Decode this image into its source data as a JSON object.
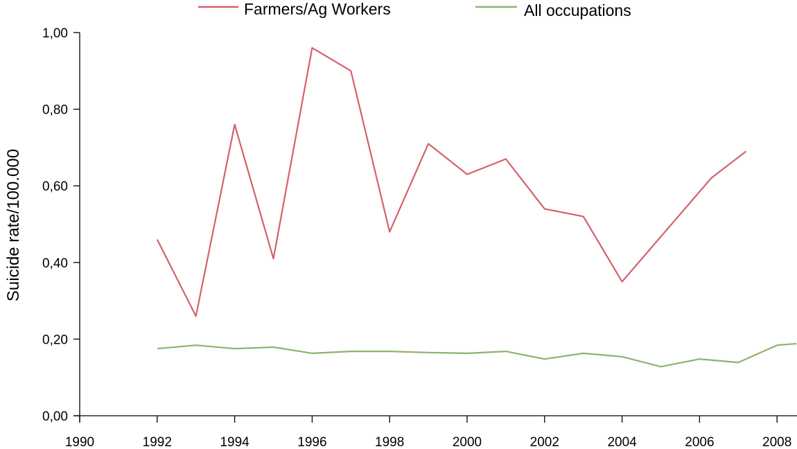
{
  "chart_data": {
    "type": "line",
    "title": "",
    "xlabel": "",
    "ylabel": "Suicide rate/100.000",
    "xlim": [
      1990,
      2008.5
    ],
    "ylim": [
      0,
      1.0
    ],
    "x_ticks": [
      "1990",
      "1992",
      "1994",
      "1996",
      "1998",
      "2000",
      "2002",
      "2004",
      "2006",
      "2008"
    ],
    "y_ticks": [
      "0,00",
      "0,20",
      "0,40",
      "0,60",
      "0,80",
      "1,00"
    ],
    "grid": false,
    "legend_position": "top",
    "series": [
      {
        "name": "Farmers/Ag Workers",
        "color": "#d4606a",
        "x": [
          1992,
          1993,
          1994,
          1995,
          1996,
          1997,
          1998,
          1999,
          2000,
          2001,
          2002,
          2003,
          2004,
          2006.3,
          2007.2
        ],
        "values": [
          0.46,
          0.26,
          0.76,
          0.41,
          0.96,
          0.9,
          0.48,
          0.71,
          0.63,
          0.67,
          0.54,
          0.52,
          0.35,
          0.62,
          0.69
        ]
      },
      {
        "name": "All occupations",
        "color": "#8db36a",
        "x": [
          1992,
          1993,
          1994,
          1995,
          1996,
          1997,
          1998,
          1999,
          2000,
          2001,
          2002,
          2003,
          2004,
          2005,
          2006,
          2007,
          2008,
          2008.5
        ],
        "values": [
          0.175,
          0.184,
          0.175,
          0.179,
          0.163,
          0.168,
          0.168,
          0.165,
          0.163,
          0.168,
          0.148,
          0.163,
          0.154,
          0.128,
          0.148,
          0.139,
          0.184,
          0.188
        ]
      }
    ]
  },
  "legend": {
    "items": [
      {
        "label": "Farmers/Ag Workers",
        "color": "#d4606a"
      },
      {
        "label": "All occupations",
        "color": "#8db36a"
      }
    ]
  },
  "axes": {
    "y_title": "Suicide rate/100.000"
  }
}
